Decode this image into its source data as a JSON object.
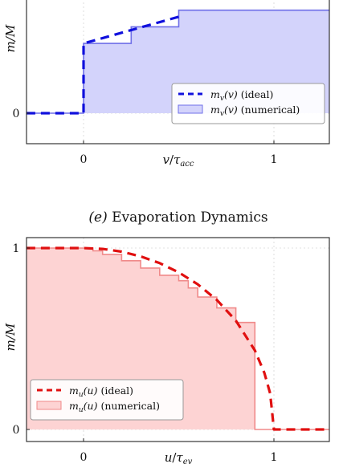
{
  "chart_data": [
    {
      "type": "area",
      "title": "",
      "xlabel": "v/τacc",
      "ylabel": "m/M",
      "xlim": [
        -0.3,
        1.3
      ],
      "ylim": [
        0,
        1.18
      ],
      "xticks": [
        0,
        1
      ],
      "yticks": [
        0
      ],
      "grid": true,
      "legend_position": "bottom-right",
      "series": [
        {
          "name": "mv(v) (ideal)",
          "style": "dashed-line",
          "color": "#1010dd",
          "x": [
            -0.3,
            0.0,
            0.0,
            0.5
          ],
          "y": [
            0.0,
            0.0,
            0.42,
            0.58
          ]
        },
        {
          "name": "mv(v) (numerical)",
          "style": "step-fill",
          "color": "#6f6fe8",
          "fill": "#d3d3fb",
          "x": [
            -0.3,
            0.0,
            0.0,
            0.25,
            0.25,
            0.5,
            0.5,
            1.3
          ],
          "y": [
            0.0,
            0.0,
            0.42,
            0.42,
            0.52,
            0.52,
            0.62,
            0.62
          ]
        }
      ],
      "legend": {
        "ideal_func": "m",
        "ideal_sub": "v",
        "ideal_arg": "(v)",
        "ideal_suffix": " (ideal)",
        "num_func": "m",
        "num_sub": "v",
        "num_arg": "(v)",
        "num_suffix": " (numerical)"
      },
      "tick_labels": {
        "x0": "0",
        "x1": "1",
        "y0": "0"
      },
      "xlabel_parts": {
        "main": "v",
        "slash": "/",
        "tau": "τ",
        "sub": "acc"
      },
      "ylabel_parts": {
        "main": "m/M"
      }
    },
    {
      "type": "area",
      "title": "(e) Evaporation Dynamics",
      "title_parts": {
        "tag": "(e)",
        "text": " Evaporation Dynamics"
      },
      "xlabel": "u/τev",
      "ylabel": "m/M",
      "xlim": [
        -0.3,
        1.3
      ],
      "ylim": [
        -0.03,
        1.05
      ],
      "xticks": [
        0,
        1
      ],
      "yticks": [
        0,
        1
      ],
      "grid": true,
      "legend_position": "bottom-left",
      "series": [
        {
          "name": "mu(u) (ideal)",
          "style": "dashed-line",
          "color": "#e01010",
          "x": [
            -0.3,
            0.0,
            0.1,
            0.2,
            0.3,
            0.4,
            0.5,
            0.6,
            0.7,
            0.8,
            0.9,
            0.95,
            0.98,
            1.0,
            1.3
          ],
          "y": [
            1.0,
            1.0,
            0.995,
            0.98,
            0.954,
            0.917,
            0.866,
            0.8,
            0.714,
            0.6,
            0.436,
            0.312,
            0.199,
            0.0,
            0.0
          ]
        },
        {
          "name": "mu(u) (numerical)",
          "style": "step-fill",
          "color": "#f08a8a",
          "fill": "#fdd3d3",
          "x": [
            -0.3,
            0.0,
            0.05,
            0.05,
            0.1,
            0.1,
            0.2,
            0.2,
            0.3,
            0.3,
            0.4,
            0.4,
            0.5,
            0.5,
            0.55,
            0.55,
            0.6,
            0.6,
            0.7,
            0.7,
            0.8,
            0.8,
            0.9,
            0.9,
            1.3
          ],
          "y": [
            1.0,
            1.0,
            1.0,
            0.985,
            0.985,
            0.965,
            0.965,
            0.93,
            0.93,
            0.89,
            0.89,
            0.85,
            0.85,
            0.82,
            0.82,
            0.78,
            0.78,
            0.73,
            0.73,
            0.67,
            0.67,
            0.59,
            0.59,
            0.0,
            0.0
          ]
        }
      ],
      "legend": {
        "ideal_func": "m",
        "ideal_sub": "u",
        "ideal_arg": "(u)",
        "ideal_suffix": " (ideal)",
        "num_func": "m",
        "num_sub": "u",
        "num_arg": "(u)",
        "num_suffix": " (numerical)"
      },
      "tick_labels": {
        "x0": "0",
        "x1": "1",
        "y0": "0",
        "y1": "1"
      },
      "xlabel_parts": {
        "main": "u",
        "slash": "/",
        "tau": "τ",
        "sub": "ev"
      },
      "ylabel_parts": {
        "main": "m/M"
      }
    }
  ]
}
